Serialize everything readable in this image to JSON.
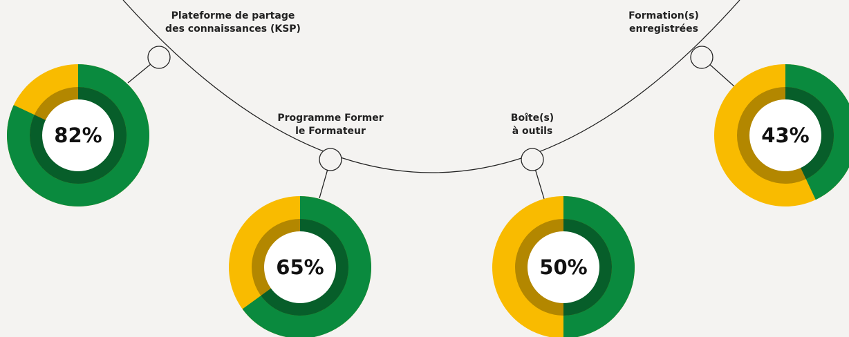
{
  "chart_data": {
    "type": "donut",
    "categories": [
      "Plateforme de partage\ndes connaissances (KSP)",
      "Programme Former\nle Formateur",
      "Boîte(s)\nà outils",
      "Formation(s)\nenregistrées"
    ],
    "values": [
      82,
      65,
      50,
      43
    ],
    "value_labels": [
      "82%",
      "65%",
      "50%",
      "43%"
    ],
    "color": "#0a8a3e",
    "remainder_color": "#f9bb00"
  }
}
